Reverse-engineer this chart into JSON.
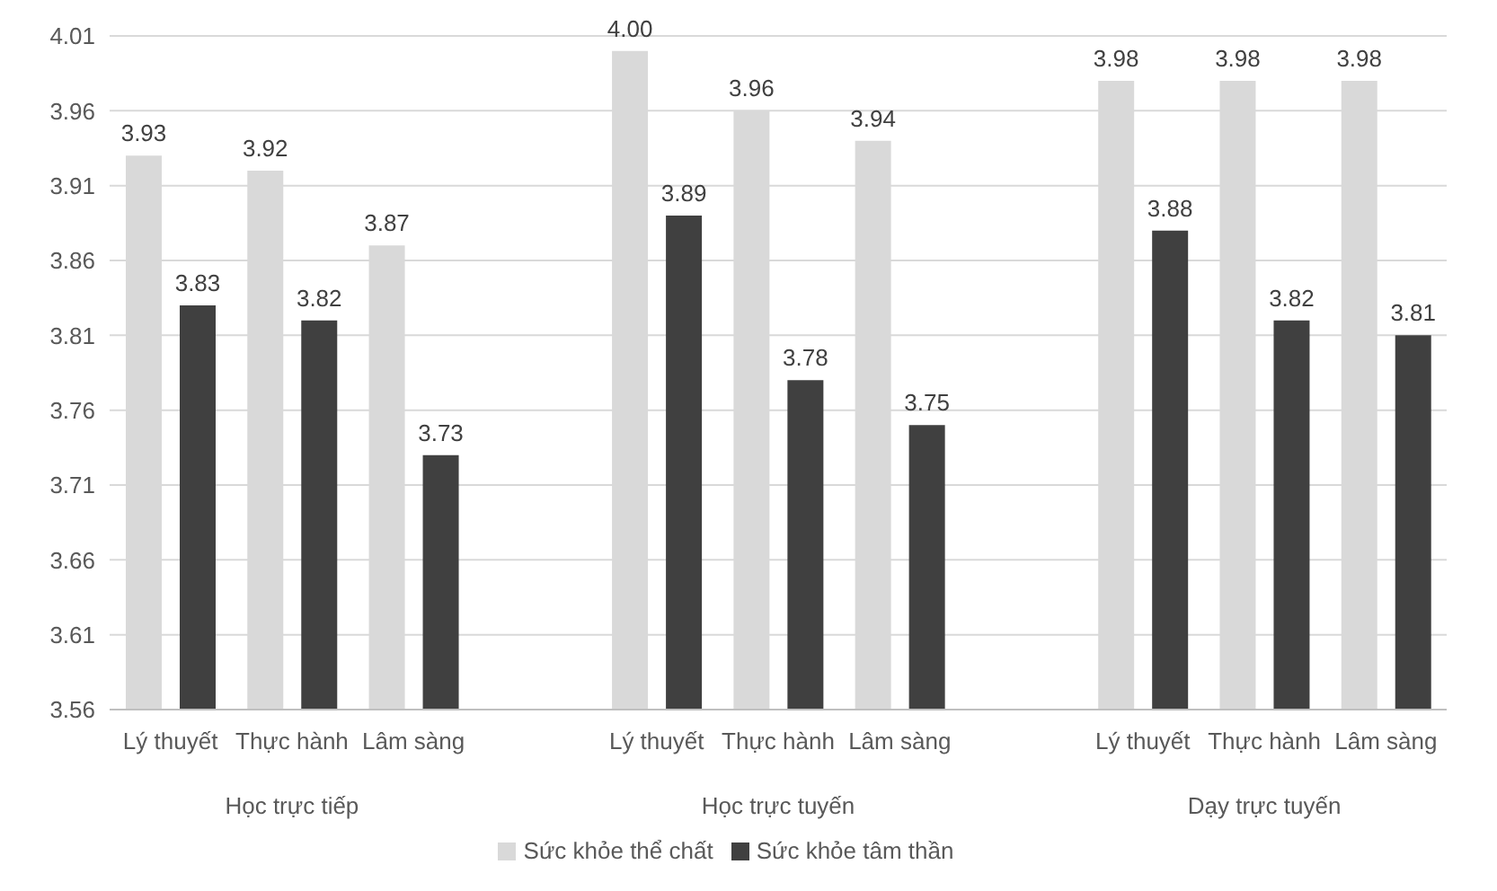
{
  "chart_data": {
    "type": "bar",
    "categories": [
      "Lý thuyết",
      "Thực hành",
      "Lâm sàng",
      null,
      "Lý thuyết",
      "Thực hành",
      "Lâm sàng",
      null,
      "Lý thuyết",
      "Thực hành",
      "Lâm sàng"
    ],
    "series": [
      {
        "name": "Sức khỏe thể chất",
        "color": "#d9d9d9",
        "values": [
          3.93,
          3.92,
          3.87,
          null,
          4.0,
          3.96,
          3.94,
          null,
          3.98,
          3.98,
          3.98
        ],
        "value_labels": [
          "3.93",
          "3.92",
          "3.87",
          null,
          "4.00",
          "3.96",
          "3.94",
          null,
          "3.98",
          "3.98",
          "3.98"
        ]
      },
      {
        "name": "Sức khỏe tâm thần",
        "color": "#404040",
        "values": [
          3.83,
          3.82,
          3.73,
          null,
          3.89,
          3.78,
          3.75,
          null,
          3.88,
          3.82,
          3.81
        ],
        "value_labels": [
          "3.83",
          "3.82",
          "3.73",
          null,
          "3.89",
          "3.78",
          "3.75",
          null,
          "3.88",
          "3.82",
          "3.81"
        ]
      }
    ],
    "annotations": [
      "Học trực tiếp",
      "Học trực tuyến",
      "Dạy trực tuyến"
    ],
    "ylim": [
      3.56,
      4.01
    ],
    "yticks": [
      3.56,
      3.61,
      3.66,
      3.71,
      3.76,
      3.81,
      3.86,
      3.91,
      3.96,
      4.01
    ],
    "grid": "y",
    "legend": "bottom"
  }
}
